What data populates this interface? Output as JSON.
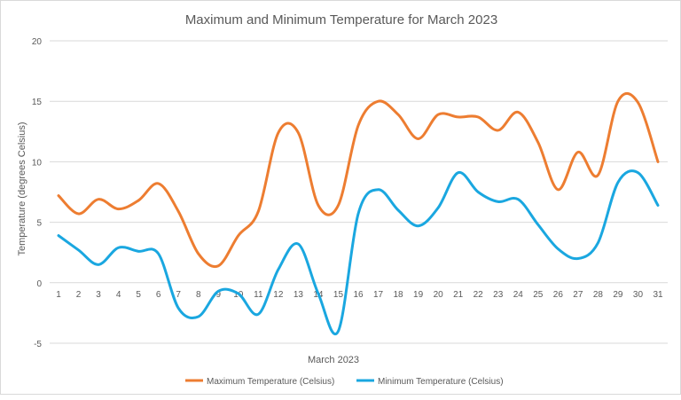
{
  "chart_data": {
    "type": "line",
    "title": "Maximum and Minimum Temperature for March 2023",
    "xlabel": "March 2023",
    "ylabel": "Temperature  (degrees Celsius)",
    "ylim": [
      -5,
      20
    ],
    "yticks": [
      -5,
      0,
      5,
      10,
      15,
      20
    ],
    "grid": true,
    "smooth": true,
    "legend_position": "bottom",
    "categories": [
      "1",
      "2",
      "3",
      "4",
      "5",
      "6",
      "7",
      "8",
      "9",
      "10",
      "11",
      "12",
      "13",
      "14",
      "15",
      "16",
      "17",
      "18",
      "19",
      "20",
      "21",
      "22",
      "23",
      "24",
      "25",
      "26",
      "27",
      "28",
      "29",
      "30",
      "31"
    ],
    "series": [
      {
        "name": "Maximum Temperature (Celsius)",
        "color": "#ED7D31",
        "values": [
          7.2,
          5.7,
          6.9,
          6.1,
          6.8,
          8.2,
          5.9,
          2.4,
          1.4,
          3.9,
          5.9,
          12.4,
          12.4,
          6.4,
          6.4,
          13.0,
          15.0,
          13.9,
          11.9,
          13.9,
          13.7,
          13.7,
          12.6,
          14.1,
          11.6,
          7.7,
          10.8,
          8.9,
          15.0,
          14.9,
          10.0
        ]
      },
      {
        "name": "Minimum Temperature (Celsius)",
        "color": "#1AA7E0",
        "values": [
          3.9,
          2.7,
          1.5,
          2.9,
          2.6,
          2.4,
          -2.1,
          -2.8,
          -0.7,
          -0.9,
          -2.6,
          1.1,
          3.2,
          -0.9,
          -4.0,
          5.7,
          7.7,
          6.0,
          4.7,
          6.2,
          9.1,
          7.5,
          6.7,
          6.9,
          4.8,
          2.8,
          2.0,
          3.3,
          8.3,
          9.1,
          6.4
        ]
      }
    ]
  }
}
